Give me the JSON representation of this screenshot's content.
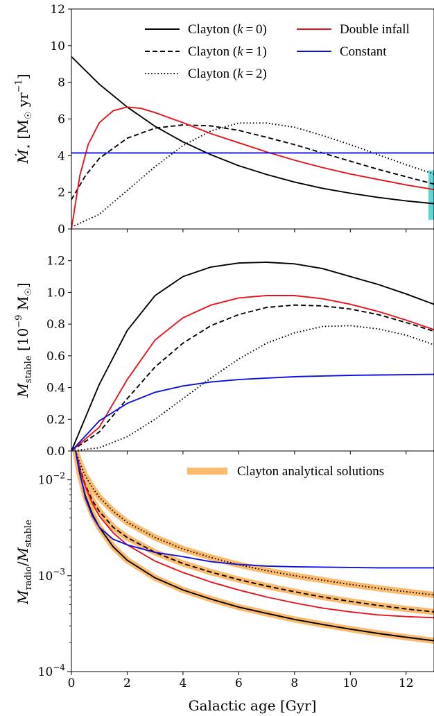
{
  "colors": {
    "black": "#000000",
    "red": "#e8131b",
    "blue": "#1010dd",
    "orange": "#fbbb6e",
    "cyan": "#5ed6d6"
  },
  "chart_data": [
    {
      "type": "line",
      "panel": "top",
      "ylabel": "Ṁ⋆ [M☉ yr⁻¹]",
      "xlim": [
        0,
        13
      ],
      "ylim": [
        0,
        12
      ],
      "yticks": [
        "0",
        "2",
        "4",
        "6",
        "8",
        "10",
        "12"
      ],
      "legend_position": "top-right",
      "legend": [
        {
          "label": "Clayton (k = 0)",
          "style": "solid",
          "color": "black"
        },
        {
          "label": "Clayton (k = 1)",
          "style": "dashed",
          "color": "black"
        },
        {
          "label": "Clayton (k = 2)",
          "style": "dotted",
          "color": "black"
        },
        {
          "label": "Double infall",
          "style": "solid",
          "color": "red"
        },
        {
          "label": "Constant",
          "style": "solid",
          "color": "blue"
        }
      ],
      "annotation_band": {
        "x": 13,
        "y_range": [
          0.5,
          3.2
        ],
        "color": "cyan"
      },
      "series": [
        {
          "name": "Clayton (k = 0)",
          "style": "solid",
          "color": "black",
          "x": [
            0,
            1,
            2,
            3,
            4,
            5,
            6,
            7,
            8,
            9,
            10,
            11,
            12,
            13
          ],
          "y": [
            9.4,
            7.9,
            6.65,
            5.6,
            4.75,
            4.05,
            3.45,
            2.97,
            2.56,
            2.22,
            1.95,
            1.72,
            1.53,
            1.38
          ]
        },
        {
          "name": "Clayton (k = 1)",
          "style": "dashed",
          "color": "black",
          "x": [
            0,
            0.5,
            1,
            2,
            3,
            4,
            5,
            6,
            7,
            8,
            9,
            10,
            11,
            12,
            13
          ],
          "y": [
            1.6,
            2.9,
            3.85,
            4.95,
            5.5,
            5.68,
            5.62,
            5.38,
            5.0,
            4.6,
            4.15,
            3.7,
            3.25,
            2.85,
            2.45
          ]
        },
        {
          "name": "Clayton (k = 2)",
          "style": "dotted",
          "color": "black",
          "x": [
            0,
            1,
            2,
            3,
            4,
            5,
            6,
            7,
            8,
            9,
            10,
            11,
            12,
            13
          ],
          "y": [
            0.1,
            0.8,
            2.1,
            3.4,
            4.55,
            5.35,
            5.78,
            5.78,
            5.55,
            5.1,
            4.6,
            4.05,
            3.5,
            3.0
          ]
        },
        {
          "name": "Double infall",
          "style": "solid",
          "color": "red",
          "x": [
            0,
            0.3,
            0.6,
            1,
            1.5,
            2,
            2.5,
            3,
            4,
            5,
            6,
            7,
            8,
            9,
            10,
            11,
            12,
            13
          ],
          "y": [
            0,
            2.9,
            4.6,
            5.8,
            6.45,
            6.65,
            6.58,
            6.35,
            5.8,
            5.2,
            4.7,
            4.2,
            3.75,
            3.35,
            3.0,
            2.7,
            2.4,
            2.15
          ]
        },
        {
          "name": "Constant",
          "style": "solid",
          "color": "blue",
          "x": [
            0,
            13
          ],
          "y": [
            4.15,
            4.15
          ]
        }
      ]
    },
    {
      "type": "line",
      "panel": "middle",
      "ylabel": "Mstable [10⁻⁹ M☉]",
      "xlim": [
        0,
        13
      ],
      "ylim": [
        0,
        1.4
      ],
      "yticks": [
        "0.0",
        "0.2",
        "0.4",
        "0.6",
        "0.8",
        "1.0",
        "1.2"
      ],
      "series": [
        {
          "name": "Clayton (k = 0)",
          "style": "solid",
          "color": "black",
          "x": [
            0,
            1,
            2,
            3,
            4,
            5,
            6,
            7,
            8,
            9,
            10,
            11,
            12,
            13
          ],
          "y": [
            0,
            0.42,
            0.76,
            0.98,
            1.1,
            1.16,
            1.185,
            1.19,
            1.18,
            1.15,
            1.1,
            1.05,
            0.99,
            0.925
          ]
        },
        {
          "name": "Clayton (k = 1)",
          "style": "dashed",
          "color": "black",
          "x": [
            0,
            1,
            2,
            3,
            4,
            5,
            6,
            7,
            8,
            9,
            10,
            11,
            12,
            13
          ],
          "y": [
            0,
            0.12,
            0.33,
            0.53,
            0.68,
            0.79,
            0.86,
            0.905,
            0.92,
            0.915,
            0.895,
            0.86,
            0.81,
            0.755
          ]
        },
        {
          "name": "Clayton (k = 2)",
          "style": "dotted",
          "color": "black",
          "x": [
            0,
            1,
            2,
            3,
            4,
            5,
            6,
            7,
            8,
            9,
            10,
            11,
            12,
            13
          ],
          "y": [
            0,
            0.02,
            0.09,
            0.2,
            0.33,
            0.46,
            0.58,
            0.68,
            0.745,
            0.785,
            0.79,
            0.77,
            0.73,
            0.67
          ]
        },
        {
          "name": "Double infall",
          "style": "solid",
          "color": "red",
          "x": [
            0,
            1,
            2,
            3,
            4,
            5,
            6,
            7,
            8,
            9,
            10,
            11,
            12,
            13
          ],
          "y": [
            0,
            0.15,
            0.45,
            0.7,
            0.84,
            0.92,
            0.965,
            0.98,
            0.98,
            0.96,
            0.925,
            0.88,
            0.825,
            0.765
          ]
        },
        {
          "name": "Constant",
          "style": "solid",
          "color": "blue",
          "x": [
            0,
            1,
            2,
            3,
            4,
            5,
            6,
            7,
            8,
            9,
            10,
            11,
            12,
            13
          ],
          "y": [
            0,
            0.19,
            0.3,
            0.37,
            0.41,
            0.435,
            0.45,
            0.46,
            0.468,
            0.473,
            0.477,
            0.479,
            0.481,
            0.483
          ]
        }
      ]
    },
    {
      "type": "line",
      "panel": "bottom",
      "yscale": "log",
      "ylabel": "Mradio / Mstable",
      "xlabel": "Galactic age [Gyr]",
      "xlim": [
        0,
        13
      ],
      "ylim": [
        0.0001,
        0.02
      ],
      "yticks": [
        {
          "base": "10",
          "exp": "−2",
          "value": 0.01
        },
        {
          "base": "10",
          "exp": "−3",
          "value": 0.001
        },
        {
          "base": "10",
          "exp": "−4",
          "value": 0.0001
        }
      ],
      "xticks": [
        "0",
        "2",
        "4",
        "6",
        "8",
        "10",
        "12"
      ],
      "legend_position": "top-right",
      "legend": [
        {
          "label": "Clayton analytical solutions",
          "style": "band",
          "color": "orange"
        }
      ],
      "series": [
        {
          "name": "Clayton (k = 0)",
          "style": "solid",
          "color": "black",
          "band": true,
          "x": [
            0.15,
            0.3,
            0.5,
            0.75,
            1,
            1.5,
            2,
            3,
            4,
            5,
            6,
            7,
            8,
            9,
            10,
            11,
            12,
            13
          ],
          "y": [
            0.02,
            0.0115,
            0.0068,
            0.0044,
            0.0032,
            0.002,
            0.00145,
            0.00095,
            0.00071,
            0.00057,
            0.00047,
            0.000405,
            0.00035,
            0.00031,
            0.000277,
            0.00025,
            0.000228,
            0.00021
          ]
        },
        {
          "name": "Clayton (k = 1)",
          "style": "dashed",
          "color": "black",
          "band": true,
          "x": [
            0.15,
            0.3,
            0.5,
            0.75,
            1,
            1.5,
            2,
            3,
            4,
            5,
            6,
            7,
            8,
            9,
            10,
            11,
            12,
            13
          ],
          "y": [
            0.02,
            0.0135,
            0.0088,
            0.0061,
            0.0047,
            0.0032,
            0.0025,
            0.00175,
            0.00134,
            0.00109,
            0.00091,
            0.00078,
            0.00068,
            0.0006,
            0.00054,
            0.00049,
            0.00045,
            0.00042
          ]
        },
        {
          "name": "Clayton (k = 2)",
          "style": "dotted",
          "color": "black",
          "band": true,
          "x": [
            0.15,
            0.3,
            0.5,
            0.75,
            1,
            1.5,
            2,
            3,
            4,
            5,
            6,
            7,
            8,
            9,
            10,
            11,
            12,
            13
          ],
          "y": [
            0.02,
            0.015,
            0.011,
            0.0083,
            0.0066,
            0.0047,
            0.0036,
            0.0025,
            0.0019,
            0.00155,
            0.0013,
            0.00113,
            0.001,
            0.0009,
            0.00081,
            0.00074,
            0.00068,
            0.00063
          ]
        },
        {
          "name": "Double infall",
          "style": "solid",
          "color": "red",
          "band": false,
          "x": [
            0.15,
            0.3,
            0.5,
            0.75,
            1,
            1.5,
            2,
            3,
            4,
            5,
            6,
            7,
            8,
            9,
            10,
            11,
            12,
            13
          ],
          "y": [
            0.02,
            0.013,
            0.0085,
            0.0057,
            0.0042,
            0.0028,
            0.0021,
            0.00142,
            0.00108,
            0.00086,
            0.00071,
            0.0006,
            0.00052,
            0.00046,
            0.00042,
            0.00039,
            0.000375,
            0.000365
          ]
        },
        {
          "name": "Constant",
          "style": "solid",
          "color": "blue",
          "band": false,
          "x": [
            0.15,
            0.3,
            0.5,
            0.75,
            1,
            1.5,
            2,
            3,
            4,
            5,
            6,
            7,
            8,
            9,
            10,
            11,
            12,
            13
          ],
          "y": [
            0.02,
            0.012,
            0.0065,
            0.0042,
            0.0032,
            0.0024,
            0.0021,
            0.00175,
            0.00158,
            0.0014,
            0.00131,
            0.00126,
            0.00124,
            0.00123,
            0.00122,
            0.00121,
            0.00121,
            0.00121
          ]
        }
      ]
    }
  ]
}
